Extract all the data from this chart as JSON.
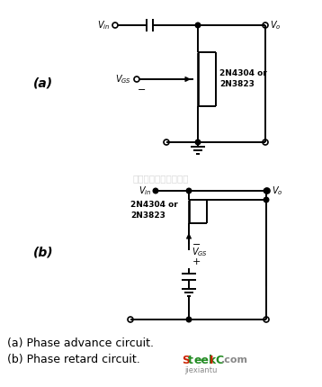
{
  "bg_color": "#ffffff",
  "watermark_text": "杭州将客科技有限公司",
  "watermark_color": "#c8c8c8",
  "label_a": "(a)",
  "label_b": "(b)",
  "caption_a": "(a) Phase advance circuit.",
  "caption_b": "(b) Phase retard circuit.",
  "line_color": "#000000",
  "text_color": "#000000",
  "lw": 1.4
}
